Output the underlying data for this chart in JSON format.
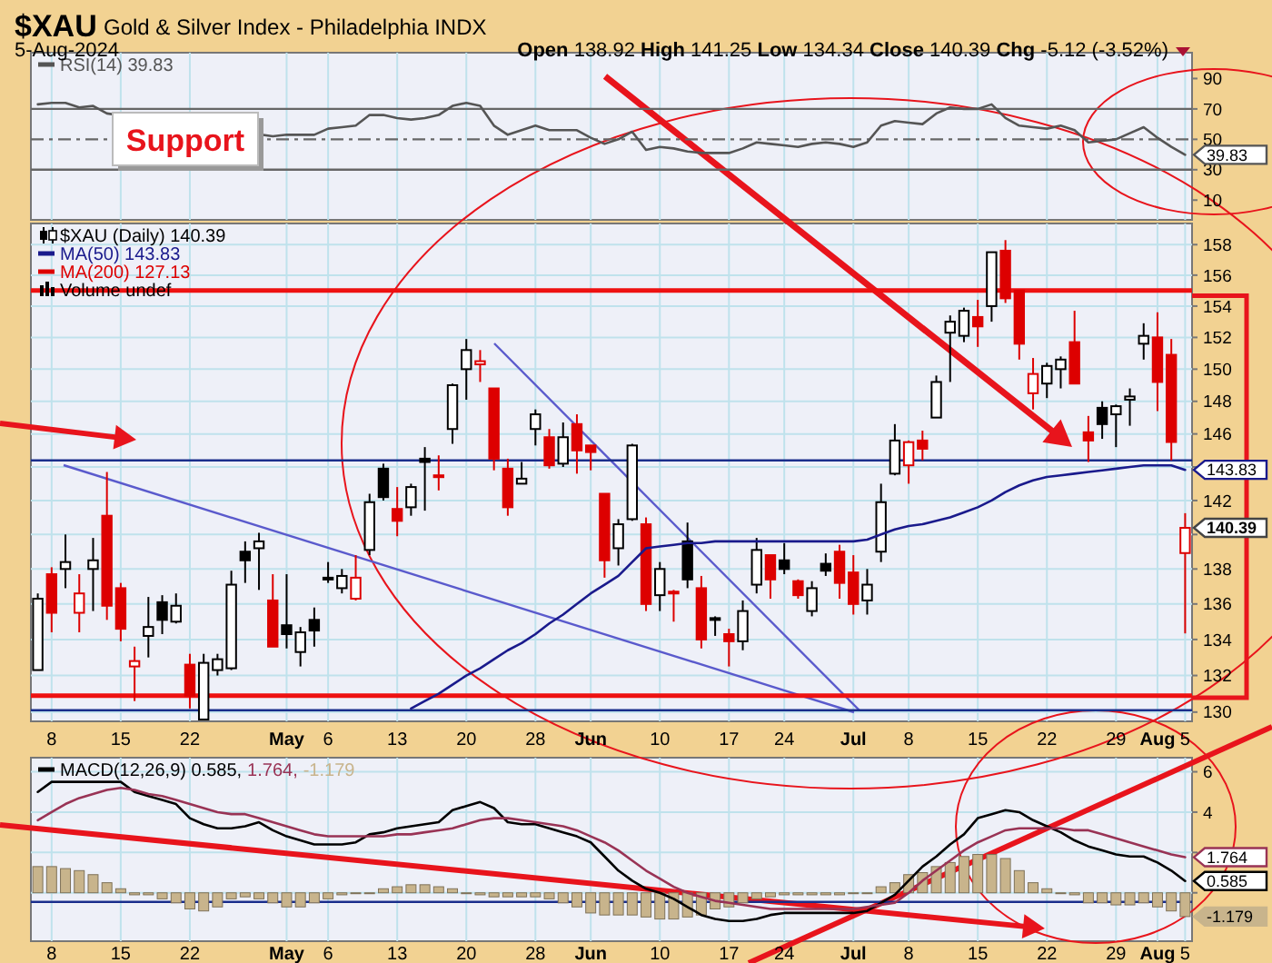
{
  "chart_data": [
    {
      "type": "line",
      "title": "$XAU",
      "subtitle": "Gold & Silver Index - Philadelphia INDX",
      "categories": [
        null,
        null,
        null,
        null,
        null,
        null,
        null,
        null,
        null,
        null,
        null,
        null,
        null,
        null,
        null,
        null,
        null,
        null,
        null,
        null,
        null,
        null,
        null,
        null,
        null,
        null,
        null,
        null,
        null,
        null,
        null,
        null,
        null,
        null,
        null,
        null,
        null,
        null,
        null,
        null,
        null,
        null,
        null,
        null,
        null,
        null,
        null,
        null,
        null,
        null,
        null,
        null,
        null,
        null,
        null,
        null,
        null,
        null,
        null,
        null,
        null,
        null,
        null,
        null,
        null,
        null,
        null,
        null,
        null,
        null,
        null,
        null,
        null,
        null,
        null,
        null,
        null,
        null,
        null,
        null,
        null,
        null,
        null,
        null
      ],
      "ylim": [
        -3,
        107
      ],
      "yticks": [
        10,
        30,
        50,
        70,
        90
      ],
      "grid": "x",
      "tick_labels": "y",
      "legend": "top left",
      "series": [
        {
          "name": "RSI(14) 39.83",
          "color": "#555555",
          "values": [
            73,
            74,
            74,
            71,
            72,
            67,
            null,
            null,
            null,
            null,
            null,
            null,
            null,
            null,
            null,
            null,
            null,
            52,
            53,
            53,
            53,
            57,
            58,
            59,
            66,
            66,
            64,
            63,
            64,
            66,
            72,
            74,
            72,
            59,
            53,
            56,
            59,
            56,
            56,
            56,
            51,
            47,
            50,
            55,
            43,
            45,
            44,
            42,
            41,
            41,
            41,
            44,
            48,
            47,
            46,
            45,
            47,
            48,
            47,
            45,
            48,
            59,
            62,
            61,
            60,
            67,
            71,
            70,
            70,
            73,
            64,
            59,
            58,
            57,
            59,
            56,
            48,
            49,
            50,
            54,
            58,
            51,
            45,
            39.83
          ]
        }
      ],
      "ref_lines": [
        {
          "axis": "y",
          "value": 70,
          "color": "#666666"
        },
        {
          "axis": "y",
          "value": 30,
          "color": "#666666"
        },
        {
          "axis": "y",
          "value": 50,
          "color": "#666666",
          "line_style": "dashed"
        }
      ],
      "annotations": [
        "5-Aug-2024",
        "Open 138.92 High 141.25 Low 134.34 Close 140.39 Chg -5.12 (-3.52%)",
        "Support",
        "39.83"
      ]
    },
    {
      "type": "candlestick",
      "log": true,
      "categories": [
        null,
        "8",
        null,
        null,
        null,
        null,
        "15",
        null,
        null,
        null,
        null,
        "22",
        null,
        null,
        null,
        null,
        null,
        null,
        "May",
        null,
        null,
        "6",
        null,
        null,
        null,
        null,
        "13",
        null,
        null,
        null,
        null,
        "20",
        null,
        null,
        null,
        null,
        "28",
        null,
        null,
        null,
        "Jun",
        null,
        null,
        null,
        null,
        "10",
        null,
        null,
        null,
        null,
        "17",
        null,
        null,
        null,
        "24",
        null,
        null,
        null,
        null,
        "Jul",
        null,
        null,
        null,
        "8",
        null,
        null,
        null,
        null,
        "15",
        null,
        null,
        null,
        null,
        "22",
        null,
        null,
        null,
        null,
        "29",
        null,
        null,
        "Aug",
        null,
        "5"
      ],
      "ylim": [
        129.5,
        159.4
      ],
      "yticks": [
        130,
        132,
        134,
        136,
        138,
        {
          "value": 140,
          "label": null
        },
        142,
        {
          "value": 144,
          "label": null
        },
        146,
        148,
        150,
        152,
        154,
        156,
        158
      ],
      "grid": true,
      "legend": "top left",
      "series": [
        {
          "name": "$XAU (Daily) 140.39",
          "ohlc": [
            [
              132.3,
              136.6,
              132.3,
              136.3
            ],
            [
              137.7,
              138.1,
              134.4,
              135.5
            ],
            [
              138.0,
              140.0,
              136.9,
              138.4
            ],
            [
              135.5,
              137.7,
              134.4,
              136.6
            ],
            [
              138.0,
              139.8,
              135.6,
              138.5
            ],
            [
              141.1,
              143.7,
              135.1,
              135.9
            ],
            [
              136.9,
              137.2,
              133.9,
              134.6
            ],
            [
              132.5,
              133.6,
              130.6,
              132.8
            ],
            [
              134.2,
              136.4,
              133.0,
              134.7
            ],
            [
              136.1,
              136.5,
              134.3,
              135.1
            ],
            [
              135.0,
              136.6,
              134.9,
              135.9
            ],
            [
              132.6,
              133.2,
              130.2,
              130.9
            ],
            [
              129.6,
              133.2,
              129.6,
              132.7
            ],
            [
              132.3,
              133.2,
              132.0,
              132.9
            ],
            [
              132.4,
              137.9,
              132.3,
              137.1
            ],
            [
              139.0,
              139.6,
              137.2,
              138.5
            ],
            [
              139.2,
              140.1,
              136.8,
              139.6
            ],
            [
              136.2,
              137.7,
              133.6,
              133.6
            ],
            [
              134.8,
              137.7,
              133.5,
              134.3
            ],
            [
              133.3,
              134.7,
              132.5,
              134.4
            ],
            [
              135.1,
              135.8,
              133.6,
              134.5
            ],
            [
              137.5,
              138.4,
              137.2,
              137.4
            ],
            [
              136.9,
              138.0,
              136.6,
              137.6
            ],
            [
              136.3,
              138.8,
              136.2,
              137.5
            ],
            [
              139.1,
              142.4,
              138.8,
              141.9
            ],
            [
              143.9,
              144.2,
              142.0,
              142.2
            ],
            [
              141.5,
              142.8,
              139.9,
              140.8
            ],
            [
              141.6,
              143.0,
              141.1,
              142.8
            ],
            [
              144.5,
              145.2,
              141.4,
              144.3
            ],
            [
              143.4,
              144.7,
              142.6,
              143.5
            ],
            [
              146.3,
              149.1,
              145.4,
              149.0
            ],
            [
              150.0,
              151.9,
              148.1,
              151.2
            ],
            [
              150.3,
              151.2,
              149.2,
              150.5
            ],
            [
              148.8,
              148.8,
              143.8,
              144.5
            ],
            [
              143.9,
              144.5,
              141.1,
              141.6
            ],
            [
              143.0,
              144.3,
              143.0,
              143.3
            ],
            [
              146.3,
              147.5,
              145.3,
              147.2
            ],
            [
              145.8,
              146.3,
              143.9,
              144.1
            ],
            [
              144.2,
              146.7,
              144.0,
              145.8
            ],
            [
              146.6,
              147.2,
              143.6,
              145.0
            ],
            [
              145.3,
              145.3,
              143.8,
              144.9
            ],
            [
              142.4,
              142.4,
              137.5,
              138.5
            ],
            [
              139.2,
              140.9,
              138.2,
              140.6
            ],
            [
              140.9,
              145.4,
              140.8,
              145.3
            ],
            [
              140.6,
              141.0,
              135.6,
              136.0
            ],
            [
              136.5,
              138.4,
              135.6,
              138.0
            ],
            [
              136.7,
              136.8,
              135.0,
              136.6
            ],
            [
              139.6,
              140.7,
              136.9,
              137.4
            ],
            [
              136.9,
              137.6,
              133.5,
              134.0
            ],
            [
              135.2,
              135.3,
              134.2,
              135.1
            ],
            [
              134.3,
              134.6,
              132.5,
              133.9
            ],
            [
              133.9,
              136.2,
              133.4,
              135.6
            ],
            [
              137.1,
              139.8,
              136.6,
              139.1
            ],
            [
              138.8,
              138.8,
              136.3,
              137.4
            ],
            [
              138.5,
              139.5,
              137.7,
              138.0
            ],
            [
              137.3,
              137.4,
              136.3,
              136.5
            ],
            [
              135.6,
              137.3,
              135.3,
              136.9
            ],
            [
              138.3,
              138.9,
              137.6,
              137.9
            ],
            [
              139.0,
              139.4,
              136.3,
              137.2
            ],
            [
              137.8,
              138.8,
              135.4,
              136.0
            ],
            [
              136.2,
              138.0,
              135.4,
              137.1
            ],
            [
              139.0,
              143.0,
              138.4,
              141.9
            ],
            [
              143.6,
              146.6,
              143.5,
              145.6
            ],
            [
              144.1,
              145.6,
              143.0,
              145.5
            ],
            [
              145.6,
              146.2,
              144.4,
              145.1
            ],
            [
              147.0,
              149.6,
              147.0,
              149.2
            ],
            [
              152.3,
              153.4,
              149.2,
              153.0
            ],
            [
              152.1,
              153.9,
              151.7,
              153.7
            ],
            [
              153.3,
              154.4,
              151.4,
              152.7
            ],
            [
              154.0,
              157.5,
              153.0,
              157.5
            ],
            [
              157.6,
              158.3,
              154.2,
              154.5
            ],
            [
              155.0,
              155.0,
              150.6,
              151.6
            ],
            [
              148.5,
              150.7,
              147.5,
              149.7
            ],
            [
              149.1,
              150.4,
              148.2,
              150.2
            ],
            [
              150.0,
              150.8,
              148.8,
              150.6
            ],
            [
              151.7,
              153.7,
              149.1,
              149.1
            ],
            [
              146.1,
              147.1,
              144.3,
              145.6
            ],
            [
              147.6,
              148.0,
              145.7,
              146.6
            ],
            [
              147.2,
              147.8,
              145.2,
              147.7
            ],
            [
              148.1,
              148.8,
              146.5,
              148.3
            ],
            [
              151.6,
              152.9,
              150.6,
              152.1
            ],
            [
              152.0,
              153.6,
              147.4,
              149.2
            ],
            [
              150.9,
              151.9,
              144.4,
              145.51
            ],
            [
              138.92,
              141.25,
              134.34,
              140.39
            ]
          ],
          "colors": [
            "#000000",
            "#dd0000",
            "#000000",
            "#dd0000",
            "#000000",
            "#dd0000",
            "#dd0000",
            "#dd0000",
            "#000000",
            "#000000",
            "#000000",
            "#dd0000",
            "#000000",
            "#000000",
            "#000000",
            "#000000",
            "#000000",
            "#dd0000",
            "#000000",
            "#000000",
            "#000000",
            "#000000",
            "#000000",
            "#dd0000",
            "#000000",
            "#000000",
            "#dd0000",
            "#000000",
            "#000000",
            "#dd0000",
            "#000000",
            "#000000",
            "#dd0000",
            "#dd0000",
            "#dd0000",
            "#000000",
            "#000000",
            "#dd0000",
            "#000000",
            "#dd0000",
            "#dd0000",
            "#dd0000",
            "#000000",
            "#000000",
            "#dd0000",
            "#000000",
            "#dd0000",
            "#000000",
            "#dd0000",
            "#000000",
            "#dd0000",
            "#000000",
            "#000000",
            "#dd0000",
            "#000000",
            "#dd0000",
            "#000000",
            "#000000",
            "#dd0000",
            "#dd0000",
            "#000000",
            "#000000",
            "#000000",
            "#dd0000",
            "#dd0000",
            "#000000",
            "#000000",
            "#000000",
            "#dd0000",
            "#000000",
            "#dd0000",
            "#dd0000",
            "#dd0000",
            "#000000",
            "#000000",
            "#dd0000",
            "#dd0000",
            "#000000",
            "#000000",
            "#000000",
            "#000000",
            "#dd0000",
            "#dd0000",
            "#dd0000"
          ]
        },
        {
          "type": "line",
          "name": "MA(50) 143.83",
          "color": "#1a1a8c",
          "values": [
            null,
            null,
            null,
            null,
            null,
            null,
            null,
            null,
            null,
            null,
            null,
            null,
            null,
            null,
            null,
            null,
            null,
            null,
            null,
            null,
            null,
            null,
            null,
            null,
            null,
            null,
            null,
            130.2,
            130.6,
            131.0,
            131.5,
            132.0,
            132.4,
            132.9,
            133.4,
            133.8,
            134.3,
            134.9,
            135.4,
            136.0,
            136.6,
            137.1,
            137.6,
            138.4,
            139.2,
            139.3,
            139.4,
            139.5,
            139.5,
            139.6,
            139.6,
            139.6,
            139.6,
            139.6,
            139.6,
            139.6,
            139.6,
            139.6,
            139.6,
            139.6,
            139.7,
            140.0,
            140.3,
            140.5,
            140.6,
            140.8,
            141.0,
            141.3,
            141.6,
            142.0,
            142.5,
            142.9,
            143.2,
            143.4,
            143.5,
            143.6,
            143.7,
            143.8,
            143.9,
            144.0,
            144.1,
            144.1,
            144.1,
            143.83
          ]
        },
        {
          "type": "line",
          "name": "MA(200) 127.13",
          "color": "#dd0000",
          "values": [
            null,
            null,
            null,
            null,
            null,
            null,
            null,
            null,
            null,
            null,
            null,
            null,
            null,
            null,
            null,
            null,
            null,
            null,
            null,
            null,
            null,
            null,
            null,
            null,
            null,
            null,
            null,
            null,
            null,
            null,
            null,
            null,
            null,
            null,
            null,
            null,
            null,
            null,
            null,
            null,
            null,
            null,
            null,
            null,
            null,
            null,
            null,
            null,
            null,
            null,
            null,
            null,
            null,
            null,
            null,
            null,
            null,
            null,
            null,
            null,
            null,
            null,
            null,
            null,
            null,
            null,
            null,
            null,
            null,
            null,
            null,
            null,
            null,
            null,
            null,
            null,
            null,
            null,
            null,
            null,
            null,
            null,
            null,
            null
          ]
        }
      ],
      "ref_lines": [
        {
          "axis": "y",
          "value": 155,
          "color": "#ee1111"
        },
        {
          "axis": "y",
          "value": 130.9,
          "color": "#ee1111"
        },
        {
          "axis": "y",
          "value": 144.4,
          "color": "#1a2e8c"
        },
        {
          "axis": "y",
          "value": 130.1,
          "color": "#1a2e8c"
        }
      ],
      "annotations": [
        "Volume undef",
        "143.83",
        "140.39"
      ]
    },
    {
      "type": "line",
      "categories": [
        null,
        "8",
        null,
        null,
        null,
        null,
        "15",
        null,
        null,
        null,
        null,
        "22",
        null,
        null,
        null,
        null,
        null,
        null,
        "May",
        null,
        null,
        "6",
        null,
        null,
        null,
        null,
        "13",
        null,
        null,
        null,
        null,
        "20",
        null,
        null,
        null,
        null,
        "28",
        null,
        null,
        null,
        "Jun",
        null,
        null,
        null,
        null,
        "10",
        null,
        null,
        null,
        null,
        "17",
        null,
        null,
        null,
        "24",
        null,
        null,
        null,
        null,
        "Jul",
        null,
        null,
        null,
        "8",
        null,
        null,
        null,
        null,
        "15",
        null,
        null,
        null,
        null,
        "22",
        null,
        null,
        null,
        null,
        "29",
        null,
        null,
        "Aug",
        null,
        "5"
      ],
      "ylim": [
        -2.4,
        6.7
      ],
      "yticks": [
        {
          "value": 0,
          "label": null
        },
        {
          "value": 2,
          "label": null
        },
        4,
        6
      ],
      "grid": true,
      "legend": "top left",
      "series": [
        {
          "name": "MACD(12,26,9) 0.585,",
          "color": "#000000",
          "values": [
            5.0,
            5.5,
            5.5,
            5.5,
            5.5,
            5.5,
            5.5,
            5.0,
            4.8,
            4.6,
            4.4,
            3.7,
            3.4,
            3.2,
            3.2,
            3.3,
            3.5,
            3.1,
            2.8,
            2.6,
            2.4,
            2.4,
            2.4,
            2.5,
            2.9,
            3.0,
            3.2,
            3.3,
            3.4,
            3.5,
            4.1,
            4.3,
            4.5,
            4.2,
            3.5,
            3.4,
            3.4,
            3.2,
            3.0,
            2.8,
            2.5,
            1.8,
            1.1,
            0.6,
            0.2,
            0,
            -0.3,
            -0.7,
            -1.1,
            -1.3,
            -1.4,
            -1.4,
            -1.3,
            -1.1,
            -1.0,
            -1.0,
            -1.0,
            -1.0,
            -1.0,
            -1.0,
            -0.9,
            -0.5,
            -0.1,
            0.6,
            1.3,
            1.8,
            2.4,
            2.9,
            3.7,
            3.9,
            4.1,
            4.0,
            3.6,
            3.3,
            3.0,
            2.6,
            2.3,
            2.1,
            1.9,
            1.8,
            1.8,
            1.5,
            1.1,
            0.585
          ]
        },
        {
          "name": "1.764,",
          "color": "#993355",
          "values": [
            3.6,
            4.0,
            4.4,
            4.7,
            4.9,
            5.1,
            5.2,
            5.1,
            4.9,
            4.8,
            4.6,
            4.4,
            4.2,
            4.0,
            3.9,
            3.9,
            3.7,
            3.5,
            3.3,
            3.1,
            2.9,
            2.8,
            2.8,
            2.8,
            2.8,
            2.8,
            2.9,
            2.9,
            3.0,
            3.1,
            3.2,
            3.4,
            3.6,
            3.7,
            3.7,
            3.6,
            3.5,
            3.4,
            3.3,
            3.1,
            2.8,
            2.5,
            2.1,
            1.6,
            1.1,
            0.7,
            0.3,
            0,
            -0.2,
            -0.4,
            -0.5,
            -0.6,
            -0.7,
            -0.8,
            -0.8,
            -0.8,
            -0.8,
            -0.8,
            -0.8,
            -0.8,
            -0.7,
            -0.6,
            -0.5,
            0,
            0.6,
            1.1,
            1.6,
            2.1,
            2.5,
            2.8,
            3.1,
            3.2,
            3.2,
            3.2,
            3.2,
            3.1,
            3.1,
            2.9,
            2.7,
            2.5,
            2.3,
            2.1,
            1.9,
            1.764
          ]
        },
        {
          "type": "bar",
          "name": "-1.179",
          "color": "#c8b48c",
          "values": [
            1.3,
            1.3,
            1.2,
            1.1,
            0.9,
            0.5,
            0.2,
            -0.1,
            -0.1,
            -0.3,
            -0.5,
            -0.8,
            -0.9,
            -0.7,
            -0.3,
            -0.2,
            -0.3,
            -0.5,
            -0.7,
            -0.7,
            -0.5,
            -0.3,
            -0.1,
            0,
            0,
            0.2,
            0.3,
            0.4,
            0.4,
            0.3,
            0.2,
            0,
            -0.1,
            -0.2,
            -0.2,
            -0.2,
            -0.2,
            -0.3,
            -0.5,
            -0.7,
            -1.0,
            -1.1,
            -1.1,
            -1.1,
            -1.2,
            -1.3,
            -1.3,
            -1.2,
            -1.1,
            -0.8,
            -0.7,
            -0.5,
            -0.3,
            -0.2,
            -0.1,
            -0.1,
            -0.1,
            -0.1,
            -0.1,
            0,
            0,
            0.3,
            0.5,
            0.9,
            1.0,
            1.3,
            1.5,
            1.8,
            1.9,
            1.9,
            1.7,
            1.1,
            0.5,
            0.2,
            0,
            -0.1,
            -0.5,
            -0.5,
            -0.6,
            -0.6,
            -0.5,
            -0.7,
            -0.9,
            -1.179
          ]
        }
      ],
      "ref_lines": [
        {
          "axis": "y",
          "value": -0.45,
          "color": "#1a2e8c"
        }
      ],
      "annotations": [
        "1.764",
        "0.585",
        "-1.179"
      ]
    }
  ]
}
